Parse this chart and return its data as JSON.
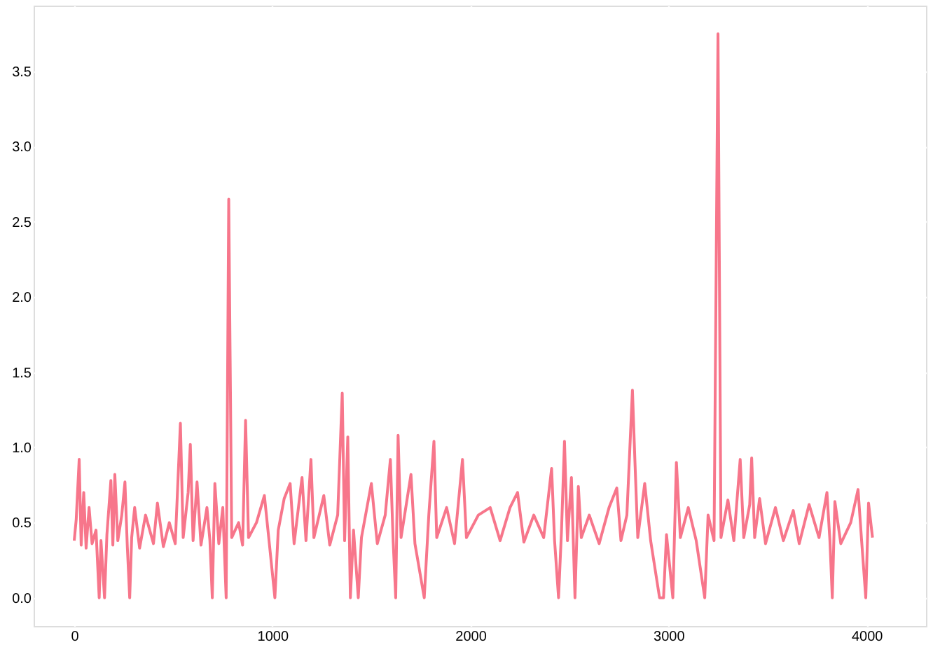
{
  "chart_data": {
    "type": "line",
    "grid": true,
    "line_style": "solid",
    "marker": "none",
    "xlim": [
      -205,
      4300
    ],
    "xticks": [
      0,
      1000,
      2000,
      3000,
      4000
    ],
    "ylim": [
      -0.1875,
      3.9375
    ],
    "yticks": [
      {
        "value": 0,
        "label": "0.0"
      },
      {
        "value": 0.5,
        "label": "0.5"
      },
      {
        "value": 1,
        "label": "1.0"
      },
      {
        "value": 1.5,
        "label": "1.5"
      },
      {
        "value": 2,
        "label": "2.0"
      },
      {
        "value": 2.5,
        "label": "2.5"
      },
      {
        "value": 3,
        "label": "3.0"
      },
      {
        "value": 3.5,
        "label": "3.5"
      }
    ],
    "series": [
      {
        "color": "#f7768b",
        "x": [
          0,
          10,
          25,
          35,
          48,
          60,
          75,
          90,
          110,
          126,
          135,
          153,
          165,
          185,
          195,
          205,
          220,
          240,
          256,
          268,
          280,
          290,
          305,
          330,
          360,
          400,
          420,
          450,
          480,
          510,
          536,
          550,
          575,
          586,
          600,
          620,
          640,
          670,
          685,
          697,
          710,
          730,
          750,
          767,
          780,
          795,
          830,
          850,
          865,
          880,
          920,
          960,
          985,
          1013,
          1030,
          1060,
          1090,
          1110,
          1150,
          1170,
          1195,
          1210,
          1260,
          1290,
          1330,
          1353,
          1365,
          1381,
          1394,
          1410,
          1434,
          1450,
          1500,
          1530,
          1570,
          1596,
          1610,
          1623,
          1635,
          1650,
          1700,
          1720,
          1767,
          1790,
          1816,
          1830,
          1880,
          1920,
          1960,
          1980,
          2040,
          2100,
          2150,
          2200,
          2238,
          2270,
          2320,
          2370,
          2410,
          2425,
          2445,
          2460,
          2475,
          2490,
          2510,
          2528,
          2545,
          2560,
          2600,
          2650,
          2700,
          2739,
          2760,
          2790,
          2818,
          2830,
          2845,
          2880,
          2910,
          2955,
          2975,
          2990,
          3022,
          3040,
          3060,
          3100,
          3140,
          3183,
          3200,
          3230,
          3250,
          3265,
          3300,
          3330,
          3362,
          3380,
          3410,
          3420,
          3435,
          3460,
          3490,
          3540,
          3580,
          3630,
          3660,
          3710,
          3760,
          3800,
          3815,
          3827,
          3840,
          3870,
          3920,
          3957,
          3975,
          3996,
          4010,
          4030
        ],
        "values": [
          0.38,
          0.52,
          0.92,
          0.35,
          0.7,
          0.33,
          0.6,
          0.36,
          0.45,
          0,
          0.38,
          0,
          0.42,
          0.78,
          0.35,
          0.82,
          0.38,
          0.55,
          0.77,
          0.34,
          0,
          0.4,
          0.6,
          0.33,
          0.55,
          0.36,
          0.63,
          0.34,
          0.5,
          0.36,
          1.16,
          0.4,
          0.7,
          1.02,
          0.38,
          0.77,
          0.35,
          0.6,
          0.38,
          0,
          0.76,
          0.36,
          0.6,
          0,
          2.65,
          0.4,
          0.5,
          0.35,
          1.18,
          0.4,
          0.5,
          0.68,
          0.36,
          0,
          0.45,
          0.66,
          0.76,
          0.36,
          0.8,
          0.38,
          0.92,
          0.4,
          0.68,
          0.35,
          0.55,
          1.36,
          0.38,
          1.07,
          0,
          0.45,
          0,
          0.4,
          0.76,
          0.36,
          0.55,
          0.92,
          0.38,
          0,
          1.08,
          0.4,
          0.82,
          0.36,
          0,
          0.55,
          1.04,
          0.4,
          0.6,
          0.36,
          0.92,
          0.4,
          0.55,
          0.6,
          0.38,
          0.6,
          0.7,
          0.37,
          0.55,
          0.4,
          0.86,
          0.38,
          0,
          0.45,
          1.04,
          0.38,
          0.8,
          0,
          0.74,
          0.4,
          0.55,
          0.36,
          0.6,
          0.73,
          0.38,
          0.55,
          1.38,
          0.93,
          0.4,
          0.76,
          0.38,
          0,
          0,
          0.42,
          0,
          0.9,
          0.4,
          0.6,
          0.38,
          0,
          0.55,
          0.38,
          3.75,
          0.4,
          0.65,
          0.38,
          0.92,
          0.4,
          0.62,
          0.93,
          0.4,
          0.66,
          0.36,
          0.6,
          0.38,
          0.58,
          0.36,
          0.62,
          0.4,
          0.7,
          0.38,
          0,
          0.64,
          0.36,
          0.5,
          0.72,
          0.38,
          0,
          0.63,
          0.4
        ]
      }
    ]
  }
}
